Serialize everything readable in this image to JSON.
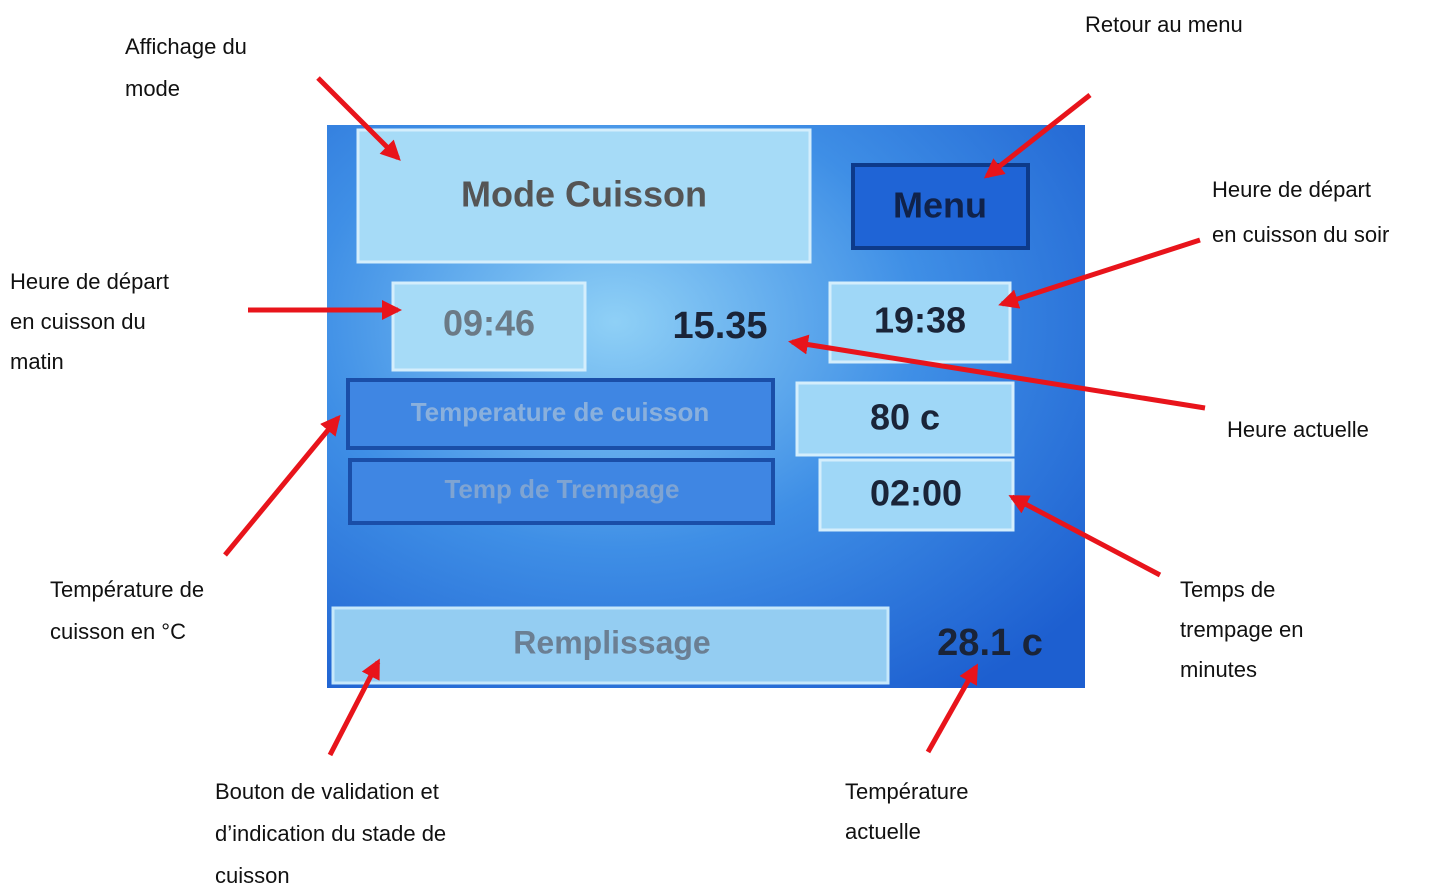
{
  "screen": {
    "mode": "Mode Cuisson",
    "menu": "Menu",
    "morning_start": "09:46",
    "current_time": "15.35",
    "evening_start": "19:38",
    "cooking_temperature_button": "Temperature de cuisson",
    "cooking_temperature": "80 c",
    "soak_time_button": "Temp de Trempage",
    "soak_time": "02:00",
    "fill_button": "Remplissage",
    "current_temperature": "28.1 c"
  },
  "annotations": {
    "mode_display": [
      "Affichage du",
      "mode"
    ],
    "back_to_menu": [
      "Retour au menu"
    ],
    "evening_start": [
      "Heure de  départ",
      "en cuisson du soir"
    ],
    "morning_start": [
      "Heure de  départ",
      "en cuisson du",
      "matin"
    ],
    "current_time": [
      "Heure actuelle"
    ],
    "cooking_temperature": [
      "Température de",
      "cuisson en °C"
    ],
    "soak_time": [
      "Temps  de",
      "trempage en",
      "minutes"
    ],
    "fill_button": [
      "Bouton de validation et",
      "d’indication du stade de",
      "cuisson"
    ],
    "current_temperature": [
      "Température",
      "actuelle"
    ]
  }
}
